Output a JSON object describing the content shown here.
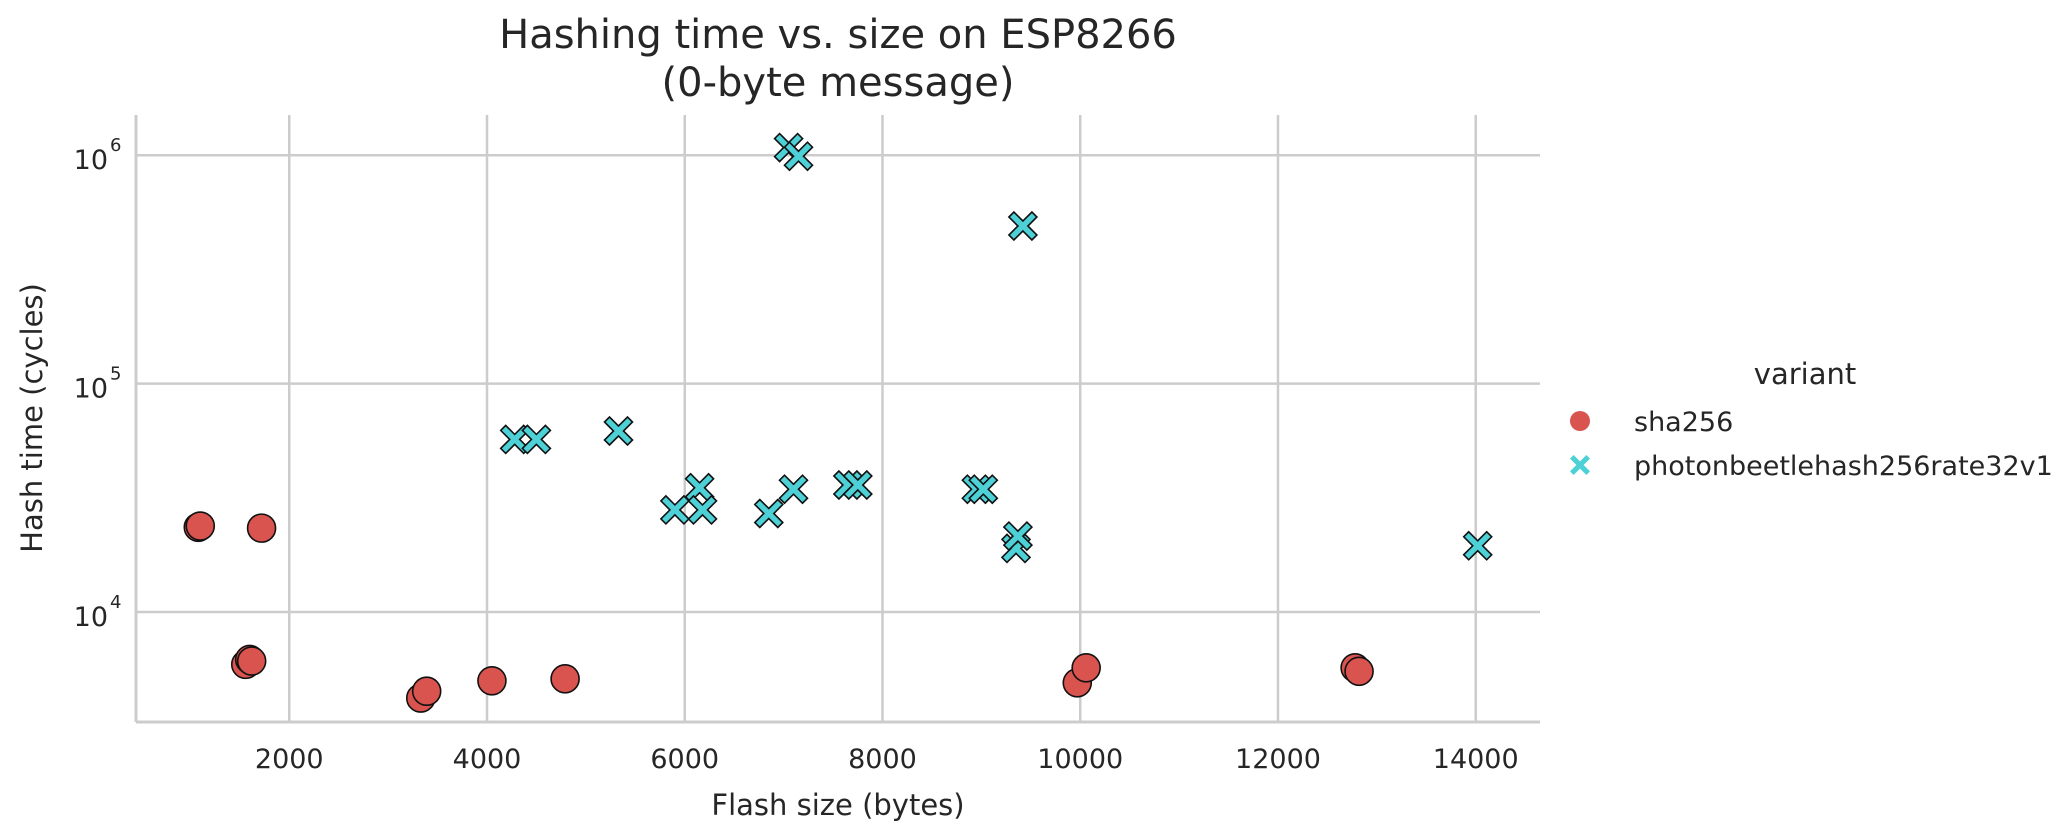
{
  "chart_data": {
    "type": "scatter",
    "title": "Hashing time vs. size on ESP8266",
    "subtitle": "(0-byte message)",
    "xlabel": "Flash size (bytes)",
    "ylabel": "Hash time (cycles)",
    "xlim": [
      450,
      14650
    ],
    "ylim": [
      3300,
      1500000
    ],
    "yscale": "log",
    "grid": true,
    "legend_placement": "right",
    "legend_title": "variant",
    "x_ticks": [
      2000,
      4000,
      6000,
      8000,
      10000,
      12000,
      14000
    ],
    "y_ticks": [
      10000,
      100000,
      1000000
    ],
    "y_tick_labels": [
      {
        "base": "10",
        "exp": "4"
      },
      {
        "base": "10",
        "exp": "5"
      },
      {
        "base": "10",
        "exp": "6"
      }
    ],
    "series": [
      {
        "name": "sha256",
        "marker": "circle",
        "color": "#d9534f",
        "points": [
          {
            "x": 1080,
            "y": 23500
          },
          {
            "x": 1100,
            "y": 23800
          },
          {
            "x": 1720,
            "y": 23300
          },
          {
            "x": 1560,
            "y": 5900
          },
          {
            "x": 1600,
            "y": 6200
          },
          {
            "x": 1620,
            "y": 6100
          },
          {
            "x": 3330,
            "y": 4200
          },
          {
            "x": 3390,
            "y": 4500
          },
          {
            "x": 4050,
            "y": 5000
          },
          {
            "x": 4790,
            "y": 5100
          },
          {
            "x": 9970,
            "y": 4900
          },
          {
            "x": 10060,
            "y": 5700
          },
          {
            "x": 12780,
            "y": 5700
          },
          {
            "x": 12820,
            "y": 5500
          }
        ]
      },
      {
        "name": "photonbeetlehash256rate32v1",
        "marker": "x",
        "color": "#4dd0d6",
        "points": [
          {
            "x": 4280,
            "y": 57000
          },
          {
            "x": 4500,
            "y": 57000
          },
          {
            "x": 5330,
            "y": 62000
          },
          {
            "x": 5900,
            "y": 28000
          },
          {
            "x": 6150,
            "y": 35000
          },
          {
            "x": 6180,
            "y": 28000
          },
          {
            "x": 6850,
            "y": 27000
          },
          {
            "x": 7100,
            "y": 34500
          },
          {
            "x": 7050,
            "y": 1080000
          },
          {
            "x": 7150,
            "y": 990000
          },
          {
            "x": 7650,
            "y": 36000
          },
          {
            "x": 7750,
            "y": 36000
          },
          {
            "x": 8950,
            "y": 34500
          },
          {
            "x": 9020,
            "y": 34500
          },
          {
            "x": 9350,
            "y": 19000
          },
          {
            "x": 9370,
            "y": 21500
          },
          {
            "x": 9420,
            "y": 490000
          },
          {
            "x": 14020,
            "y": 19500
          }
        ]
      }
    ]
  }
}
